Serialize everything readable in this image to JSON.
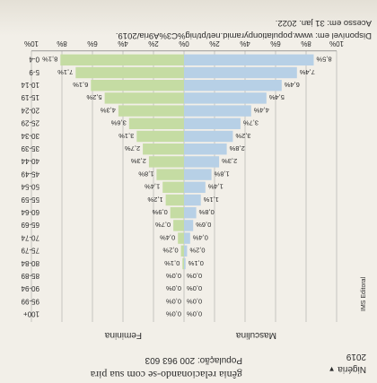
{
  "header": {
    "heading_text": "gênia relacionando-se com sua pira",
    "country_selected": "Nigéria",
    "country_dropdown_icon": "triangle-down",
    "year": "2019",
    "population_label": "População: 200 963 603",
    "source_side_label": "IMS Editoral"
  },
  "footer": {
    "source_line": "Disponível em: www.populationpyramid.net/pt/nig%C3%A9ria/2019.",
    "access_line": "Acesso em: 31 jan. 2022."
  },
  "colors": {
    "male": "#b7d0e6",
    "female": "#c5dca3",
    "background": "#f2efe8",
    "text": "#2a2a2a"
  },
  "chart_data": {
    "type": "bar",
    "orientation": "horizontal-pyramid",
    "series": [
      {
        "name": "Masculina",
        "values": [
          8.5,
          7.4,
          6.4,
          5.4,
          4.4,
          3.7,
          3.2,
          2.8,
          2.3,
          1.8,
          1.4,
          1.1,
          0.8,
          0.6,
          0.4,
          0.2,
          0.1,
          0.0,
          0.0,
          0.0,
          0.0
        ],
        "labels": [
          "8,5%",
          "7,4%",
          "6,4%",
          "5,4%",
          "4,4%",
          "3,7%",
          "3,2%",
          "2,8%",
          "2,3%",
          "1,8%",
          "1,4%",
          "1,1%",
          "0,8%",
          "0,6%",
          "0,4%",
          "0,2%",
          "0,1%",
          "0,0%",
          "0,0%",
          "0,0%",
          "0,0%"
        ]
      },
      {
        "name": "Feminina",
        "values": [
          8.1,
          7.1,
          6.1,
          5.2,
          4.3,
          3.6,
          3.1,
          2.7,
          2.3,
          1.8,
          1.4,
          1.2,
          0.9,
          0.7,
          0.4,
          0.2,
          0.1,
          0.0,
          0.0,
          0.0,
          0.0
        ],
        "labels": [
          "8,1%",
          "7,1%",
          "6,1%",
          "5,2%",
          "4,3%",
          "3,6%",
          "3,1%",
          "2,7%",
          "2,3%",
          "1,8%",
          "1,4%",
          "1,2%",
          "0,9%",
          "0,7%",
          "0,4%",
          "0,2%",
          "0,1%",
          "0,0%",
          "0,0%",
          "0,0%",
          "0,0%"
        ]
      }
    ],
    "categories": [
      "0-4",
      "5-9",
      "10-14",
      "15-19",
      "20-24",
      "25-29",
      "30-34",
      "35-39",
      "40-44",
      "45-49",
      "50-54",
      "55-59",
      "60-64",
      "65-69",
      "70-74",
      "75-79",
      "80-84",
      "85-89",
      "90-94",
      "95-99",
      "100+"
    ],
    "x_ticks": [
      "10%",
      "8%",
      "6%",
      "4%",
      "2%",
      "0%",
      "2%",
      "4%",
      "6%",
      "8%",
      "10%"
    ],
    "xlim": [
      -10,
      10
    ],
    "title": "",
    "xlabel": "",
    "ylabel": ""
  }
}
